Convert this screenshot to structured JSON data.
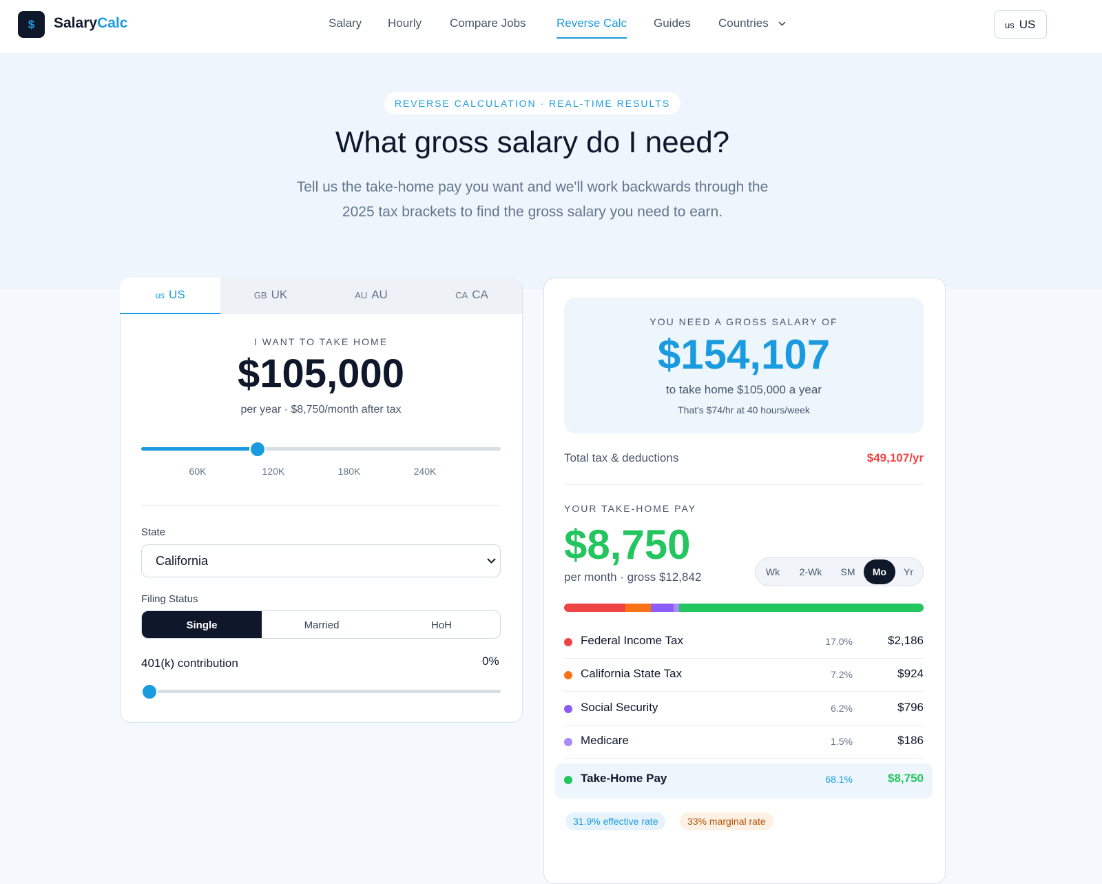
{
  "nav": {
    "logo_icon": "$",
    "brand_a": "Salary",
    "brand_b": "Calc",
    "links": [
      "Salary",
      "Hourly",
      "Compare Jobs",
      "Reverse Calc",
      "Guides",
      "Countries"
    ],
    "country_code": "us",
    "country_label": "US"
  },
  "hero": {
    "badge": "REVERSE CALCULATION · REAL-TIME RESULTS",
    "title": "What gross salary do I need?",
    "subtitle": "Tell us the take-home pay you want and we'll work backwards through the 2025 tax brackets to find the gross salary you need to earn."
  },
  "input_card": {
    "tabs": [
      {
        "code": "us",
        "label": "US"
      },
      {
        "code": "GB",
        "label": "UK"
      },
      {
        "code": "AU",
        "label": "AU"
      },
      {
        "code": "CA",
        "label": "CA"
      }
    ],
    "take_home_label": "I WANT TO TAKE HOME",
    "take_home_amount": "$105,000",
    "take_home_sub": "per year · $8,750/month after tax",
    "slider_ticks": [
      "60K",
      "120K",
      "180K",
      "240K"
    ],
    "state_label": "State",
    "state_value": "California",
    "filing_label": "Filing Status",
    "filing_options": [
      "Single",
      "Married",
      "HoH"
    ],
    "contribution_label": "401(k) contribution",
    "contribution_value": "0%"
  },
  "result_card": {
    "gross_label": "YOU NEED A GROSS SALARY OF",
    "gross_amount": "$154,107",
    "gross_sub": "to take home $105,000 a year",
    "gross_note": "That's $74/hr at 40 hours/week",
    "total_tax_label": "Total tax & deductions",
    "total_tax_value": "$49,107/yr",
    "take_home_label": "YOUR TAKE-HOME PAY",
    "take_home_amount": "$8,750",
    "take_home_sub": "per month · gross $12,842",
    "periods": [
      "Wk",
      "2-Wk",
      "SM",
      "Mo",
      "Yr"
    ],
    "rows": [
      {
        "name": "Federal Income Tax",
        "percent": "17.0%",
        "amount": "$2,186",
        "color": "#ef4444"
      },
      {
        "name": "California State Tax",
        "percent": "7.2%",
        "amount": "$924",
        "color": "#f97316"
      },
      {
        "name": "Social Security",
        "percent": "6.2%",
        "amount": "$796",
        "color": "#8b5cf6"
      },
      {
        "name": "Medicare",
        "percent": "1.5%",
        "amount": "$186",
        "color": "#a78bfa"
      },
      {
        "name": "Take-Home Pay",
        "percent": "68.1%",
        "amount": "$8,750",
        "color": "#22c55e"
      }
    ],
    "badges": [
      "31.9% effective rate",
      "33% marginal rate"
    ]
  }
}
